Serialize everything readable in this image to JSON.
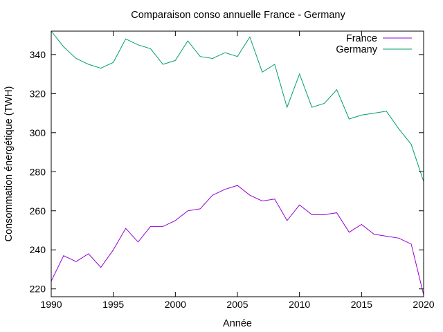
{
  "chart_data": {
    "type": "line",
    "title": "Comparaison conso annuelle France - Germany",
    "xlabel": "Année",
    "ylabel": "Consommation énergétique (TWH)",
    "xlim": [
      1990,
      2020
    ],
    "ylim": [
      216,
      352
    ],
    "xticks": [
      1990,
      1995,
      2000,
      2005,
      2010,
      2015,
      2020
    ],
    "yticks": [
      220,
      240,
      260,
      280,
      300,
      320,
      340
    ],
    "grid": false,
    "legend": "top-right",
    "x": [
      1990,
      1991,
      1992,
      1993,
      1994,
      1995,
      1996,
      1997,
      1998,
      1999,
      2000,
      2001,
      2002,
      2003,
      2004,
      2005,
      2006,
      2007,
      2008,
      2009,
      2010,
      2011,
      2012,
      2013,
      2014,
      2015,
      2016,
      2017,
      2018,
      2019,
      2020
    ],
    "series": [
      {
        "name": "France",
        "color": "#9400d3",
        "values": [
          224,
          237,
          234,
          238,
          231,
          240,
          251,
          244,
          252,
          252,
          255,
          260,
          261,
          268,
          271,
          273,
          268,
          265,
          266,
          255,
          263,
          258,
          258,
          259,
          249,
          253,
          248,
          247,
          246,
          243,
          217
        ]
      },
      {
        "name": "Germany",
        "color": "#009e73",
        "values": [
          352,
          344,
          338,
          335,
          333,
          336,
          348,
          345,
          343,
          335,
          337,
          347,
          339,
          338,
          341,
          339,
          349,
          331,
          335,
          313,
          330,
          313,
          315,
          322,
          307,
          309,
          310,
          311,
          302,
          294,
          275
        ]
      }
    ]
  }
}
